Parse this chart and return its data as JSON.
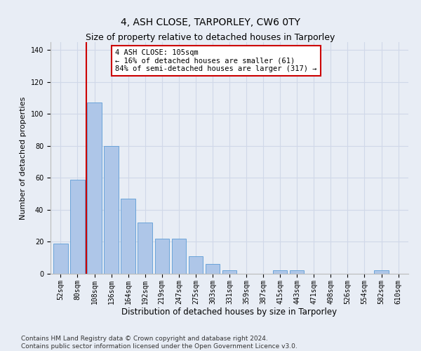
{
  "title1": "4, ASH CLOSE, TARPORLEY, CW6 0TY",
  "title2": "Size of property relative to detached houses in Tarporley",
  "xlabel": "Distribution of detached houses by size in Tarporley",
  "ylabel": "Number of detached properties",
  "categories": [
    "52sqm",
    "80sqm",
    "108sqm",
    "136sqm",
    "164sqm",
    "192sqm",
    "219sqm",
    "247sqm",
    "275sqm",
    "303sqm",
    "331sqm",
    "359sqm",
    "387sqm",
    "415sqm",
    "443sqm",
    "471sqm",
    "498sqm",
    "526sqm",
    "554sqm",
    "582sqm",
    "610sqm"
  ],
  "bar_values": [
    19,
    59,
    107,
    80,
    47,
    32,
    22,
    22,
    11,
    6,
    2,
    0,
    0,
    2,
    2,
    0,
    0,
    0,
    0,
    2,
    0
  ],
  "bar_color": "#aec6e8",
  "bar_edge_color": "#5b9bd5",
  "grid_color": "#d0d8e8",
  "background_color": "#e8edf5",
  "vline_x": 1.5,
  "vline_color": "#cc0000",
  "annotation_text": "4 ASH CLOSE: 105sqm\n← 16% of detached houses are smaller (61)\n84% of semi-detached houses are larger (317) →",
  "annotation_box_color": "#ffffff",
  "annotation_box_edge": "#cc0000",
  "ylim": [
    0,
    145
  ],
  "yticks": [
    0,
    20,
    40,
    60,
    80,
    100,
    120,
    140
  ],
  "footer": "Contains HM Land Registry data © Crown copyright and database right 2024.\nContains public sector information licensed under the Open Government Licence v3.0.",
  "title1_fontsize": 10,
  "title2_fontsize": 9,
  "xlabel_fontsize": 8.5,
  "ylabel_fontsize": 8,
  "tick_fontsize": 7,
  "footer_fontsize": 6.5
}
